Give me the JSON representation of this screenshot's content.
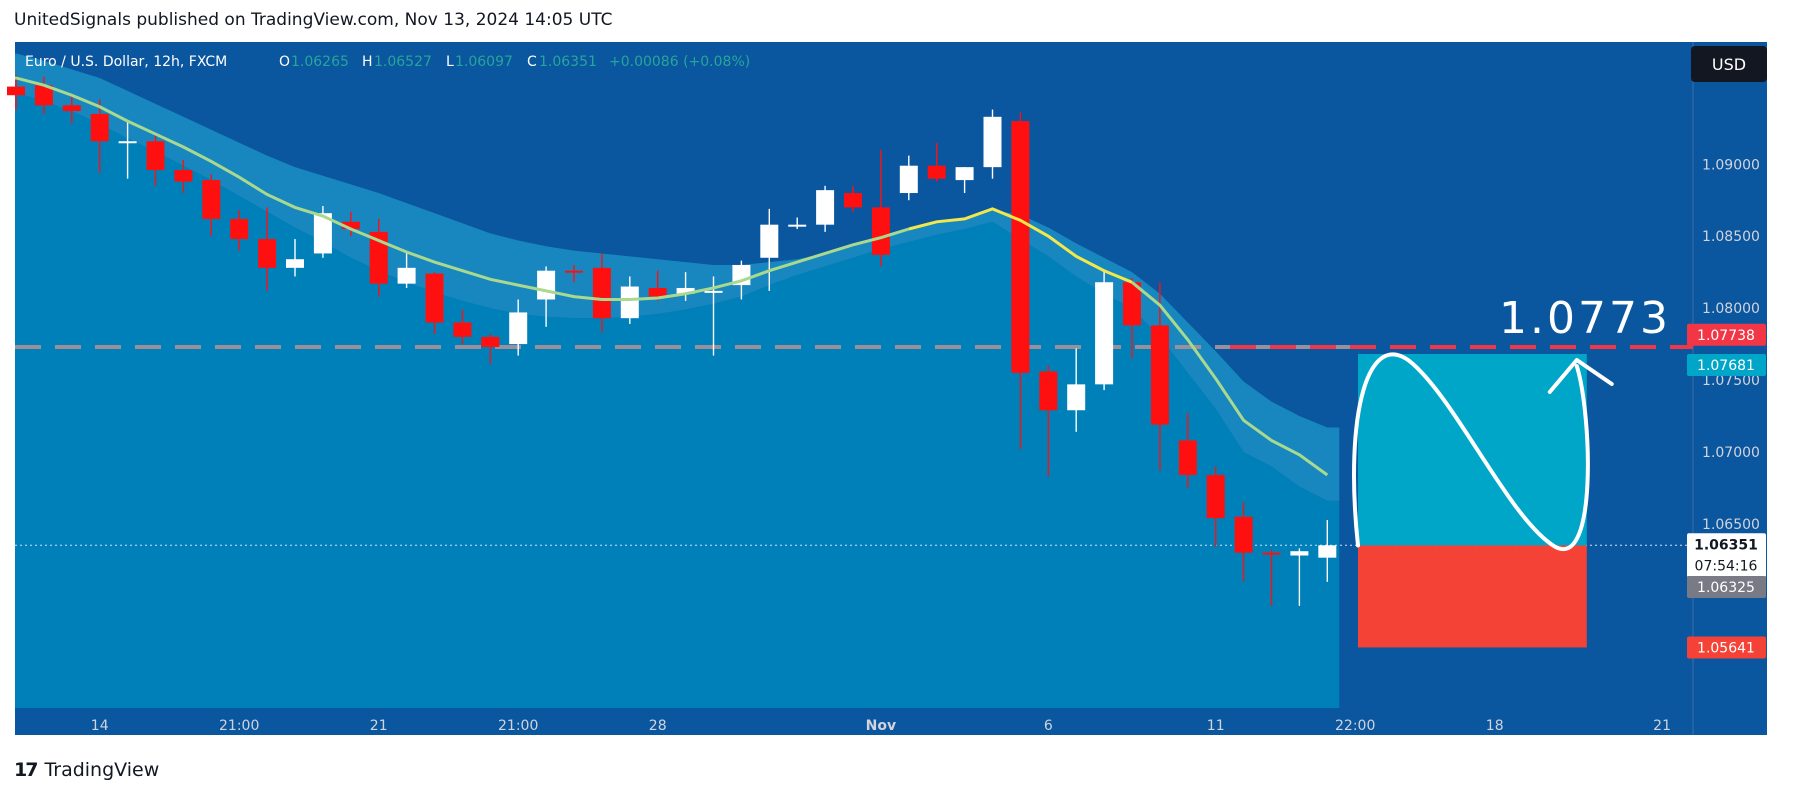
{
  "published_line": "UnitedSignals published on TradingView.com, Nov 13, 2024 14:05 UTC",
  "footer_brand": "TradingView",
  "colors": {
    "plot_bg": "#0a569f",
    "area_fill": "#0080b8",
    "band_fill": "#1b8fc4",
    "bull": "#ffffff",
    "bear": "#ff1010",
    "ma_line_green": "#a8d98e",
    "ma_line_yellow": "#f3e84a",
    "target_line": "#f23645",
    "profit_zone": "#00a6c8",
    "stop_zone": "#f44336",
    "current_price": "#ffffff",
    "gray_badge": "#787b86"
  },
  "chart_data": {
    "type": "candlestick",
    "symbol_label": "Euro / U.S. Dollar, 12h, FXCM",
    "ohlc": {
      "o_label": "O",
      "o": "1.06265",
      "h_label": "H",
      "h": "1.06527",
      "l_label": "L",
      "l": "1.06097",
      "c_label": "C",
      "c": "1.06351",
      "change": "+0.00086 (+0.08%)"
    },
    "currency_button": "USD",
    "y_ticks": [
      "1.09000",
      "1.08500",
      "1.08000",
      "1.07500",
      "1.07000",
      "1.06500"
    ],
    "y_tick_values": [
      1.09,
      1.085,
      1.08,
      1.075,
      1.07,
      1.065
    ],
    "ylim": [
      1.0522,
      1.0985
    ],
    "x_ticks": [
      "14",
      "21:00",
      "21",
      "21:00",
      "28",
      "Nov",
      "6",
      "11",
      "22:00",
      "18",
      "21"
    ],
    "x_tick_candle_index": [
      3,
      8,
      13,
      18,
      23,
      31,
      37,
      43,
      48,
      53,
      59
    ],
    "price_labels": [
      {
        "text": "1.07738",
        "value": 1.07738,
        "kind": "target"
      },
      {
        "text": "1.07681",
        "value": 1.07681,
        "kind": "profit"
      },
      {
        "text": "1.06351",
        "value": 1.06351,
        "kind": "current",
        "countdown": "07:54:16"
      },
      {
        "text": "1.06325",
        "value": 1.06325,
        "kind": "gray"
      },
      {
        "text": "1.05641",
        "value": 1.05641,
        "kind": "stop"
      }
    ],
    "annotation_big_label": "1.0773",
    "target_level": 1.0773,
    "position": {
      "entry": 1.0635,
      "take_profit": 1.07681,
      "stop": 1.05641,
      "start_index": 48.1,
      "end_index": 56.3
    },
    "candles": [
      {
        "o": 1.0954,
        "h": 1.0962,
        "l": 1.0938,
        "c": 1.0948
      },
      {
        "o": 1.0955,
        "h": 1.0961,
        "l": 1.0935,
        "c": 1.0941
      },
      {
        "o": 1.0941,
        "h": 1.0949,
        "l": 1.0928,
        "c": 1.0937
      },
      {
        "o": 1.0935,
        "h": 1.0945,
        "l": 1.0894,
        "c": 1.0916
      },
      {
        "o": 1.0915,
        "h": 1.093,
        "l": 1.089,
        "c": 1.0916
      },
      {
        "o": 1.0916,
        "h": 1.092,
        "l": 1.0885,
        "c": 1.0896
      },
      {
        "o": 1.0896,
        "h": 1.0903,
        "l": 1.088,
        "c": 1.0888
      },
      {
        "o": 1.0889,
        "h": 1.0893,
        "l": 1.085,
        "c": 1.0862
      },
      {
        "o": 1.0862,
        "h": 1.0868,
        "l": 1.084,
        "c": 1.0848
      },
      {
        "o": 1.0848,
        "h": 1.087,
        "l": 1.0812,
        "c": 1.0828
      },
      {
        "o": 1.0828,
        "h": 1.0848,
        "l": 1.0822,
        "c": 1.0834
      },
      {
        "o": 1.0838,
        "h": 1.0871,
        "l": 1.0835,
        "c": 1.0866
      },
      {
        "o": 1.086,
        "h": 1.0867,
        "l": 1.085,
        "c": 1.0855
      },
      {
        "o": 1.0853,
        "h": 1.0862,
        "l": 1.0808,
        "c": 1.0817
      },
      {
        "o": 1.0817,
        "h": 1.0838,
        "l": 1.0814,
        "c": 1.0828
      },
      {
        "o": 1.0824,
        "h": 1.0825,
        "l": 1.0782,
        "c": 1.079
      },
      {
        "o": 1.079,
        "h": 1.0799,
        "l": 1.0775,
        "c": 1.078
      },
      {
        "o": 1.078,
        "h": 1.0782,
        "l": 1.0761,
        "c": 1.0773
      },
      {
        "o": 1.0775,
        "h": 1.0806,
        "l": 1.0767,
        "c": 1.0797
      },
      {
        "o": 1.0806,
        "h": 1.0829,
        "l": 1.0787,
        "c": 1.0826
      },
      {
        "o": 1.0826,
        "h": 1.083,
        "l": 1.0818,
        "c": 1.0825
      },
      {
        "o": 1.0828,
        "h": 1.0838,
        "l": 1.0783,
        "c": 1.0793
      },
      {
        "o": 1.0793,
        "h": 1.0822,
        "l": 1.0789,
        "c": 1.0815
      },
      {
        "o": 1.0814,
        "h": 1.0826,
        "l": 1.0805,
        "c": 1.0808
      },
      {
        "o": 1.081,
        "h": 1.0825,
        "l": 1.0805,
        "c": 1.0814
      },
      {
        "o": 1.0811,
        "h": 1.0822,
        "l": 1.0767,
        "c": 1.0812
      },
      {
        "o": 1.0816,
        "h": 1.0833,
        "l": 1.0806,
        "c": 1.083
      },
      {
        "o": 1.0835,
        "h": 1.0869,
        "l": 1.0812,
        "c": 1.0858
      },
      {
        "o": 1.0858,
        "h": 1.0863,
        "l": 1.0855,
        "c": 1.0858
      },
      {
        "o": 1.0858,
        "h": 1.0885,
        "l": 1.0853,
        "c": 1.0882
      },
      {
        "o": 1.088,
        "h": 1.0885,
        "l": 1.0867,
        "c": 1.087
      },
      {
        "o": 1.087,
        "h": 1.091,
        "l": 1.0829,
        "c": 1.0837
      },
      {
        "o": 1.088,
        "h": 1.0906,
        "l": 1.0875,
        "c": 1.0899
      },
      {
        "o": 1.0899,
        "h": 1.0915,
        "l": 1.0888,
        "c": 1.089
      },
      {
        "o": 1.0889,
        "h": 1.0898,
        "l": 1.088,
        "c": 1.0898
      },
      {
        "o": 1.0898,
        "h": 1.0938,
        "l": 1.089,
        "c": 1.0933
      },
      {
        "o": 1.093,
        "h": 1.0936,
        "l": 1.0702,
        "c": 1.0755
      },
      {
        "o": 1.0756,
        "h": 1.076,
        "l": 1.0683,
        "c": 1.0729
      },
      {
        "o": 1.0729,
        "h": 1.0772,
        "l": 1.0714,
        "c": 1.0747
      },
      {
        "o": 1.0747,
        "h": 1.0825,
        "l": 1.0743,
        "c": 1.0818
      },
      {
        "o": 1.0818,
        "h": 1.0821,
        "l": 1.0765,
        "c": 1.0788
      },
      {
        "o": 1.0788,
        "h": 1.0818,
        "l": 1.0687,
        "c": 1.0719
      },
      {
        "o": 1.0708,
        "h": 1.0727,
        "l": 1.0675,
        "c": 1.0684
      },
      {
        "o": 1.0684,
        "h": 1.069,
        "l": 1.0634,
        "c": 1.0654
      },
      {
        "o": 1.0655,
        "h": 1.0665,
        "l": 1.061,
        "c": 1.063
      },
      {
        "o": 1.063,
        "h": 1.0632,
        "l": 1.0593,
        "c": 1.0629
      },
      {
        "o": 1.0628,
        "h": 1.0633,
        "l": 1.0593,
        "c": 1.0631
      },
      {
        "o": 1.06265,
        "h": 1.06527,
        "l": 1.06097,
        "c": 1.06351
      }
    ],
    "ma_green": [
      1.096,
      1.0955,
      1.0948,
      1.094,
      1.093,
      1.0921,
      1.0912,
      1.0902,
      1.0891,
      1.0879,
      1.087,
      1.0864,
      1.0855,
      1.0847,
      1.0839,
      1.0832,
      1.0826,
      1.082,
      1.0816,
      1.0812,
      1.0808,
      1.0806,
      1.0806,
      1.0807,
      1.081,
      1.0814,
      1.0819,
      1.0826,
      1.0832,
      1.0838,
      1.0844,
      1.0849,
      1.0855,
      1.086,
      1.0862,
      1.0869,
      1.0861,
      1.085,
      1.0836,
      1.0826,
      1.0818,
      1.0802,
      1.0778,
      1.0751,
      1.0722,
      1.0708,
      1.0698,
      1.0684
    ],
    "ma_yellow_from": 32,
    "band_top": [
      1.0977,
      1.0972,
      1.0966,
      1.096,
      1.0951,
      1.0942,
      1.0933,
      1.0924,
      1.0915,
      1.0906,
      1.0898,
      1.0892,
      1.0886,
      1.088,
      1.0873,
      1.0866,
      1.0859,
      1.0852,
      1.0847,
      1.0843,
      1.084,
      1.0838,
      1.0836,
      1.0834,
      1.0832,
      1.083,
      1.083,
      1.0832,
      1.0834,
      1.0838,
      1.0843,
      1.0849,
      1.0855,
      1.086,
      1.0862,
      1.0868,
      1.0865,
      1.0856,
      1.0845,
      1.0835,
      1.0825,
      1.081,
      1.079,
      1.077,
      1.0749,
      1.0735,
      1.0725,
      1.0717
    ],
    "band_bottom": [
      1.095,
      1.0944,
      1.0937,
      1.0928,
      1.0918,
      1.0909,
      1.0899,
      1.0889,
      1.0878,
      1.0867,
      1.0856,
      1.0846,
      1.0835,
      1.0826,
      1.0818,
      1.0811,
      1.0805,
      1.08,
      1.0796,
      1.0794,
      1.0793,
      1.0793,
      1.0794,
      1.0796,
      1.0799,
      1.0803,
      1.0808,
      1.0816,
      1.0823,
      1.0829,
      1.0835,
      1.0841,
      1.0846,
      1.0851,
      1.0855,
      1.086,
      1.0848,
      1.0836,
      1.0822,
      1.081,
      1.08,
      1.078,
      1.0755,
      1.073,
      1.07,
      1.069,
      1.0676,
      1.0666
    ]
  }
}
